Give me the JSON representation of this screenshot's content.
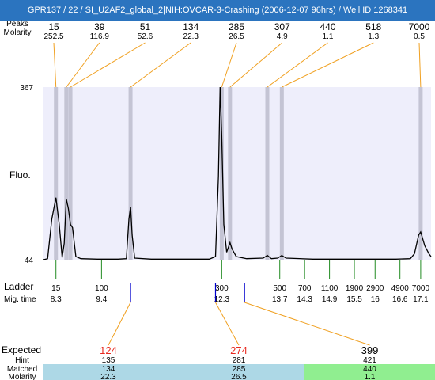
{
  "window_title": "GPR137 / 22 / SI_U2AF2_global_2|NIH:OVCAR-3-Crashing (2006-12-07 96hrs) / Well ID 1268341",
  "chart_data": {
    "type": "line",
    "top_labels": {
      "row1": "Peaks",
      "row2": "Molarity"
    },
    "peaks": [
      {
        "size": "15",
        "molarity": "252.5",
        "time": 8.3
      },
      {
        "size": "39",
        "molarity": "116.9",
        "time": 8.55
      },
      {
        "size": "51",
        "molarity": "52.6",
        "time": 8.65
      },
      {
        "size": "134",
        "molarity": "22.3",
        "time": 10.1
      },
      {
        "size": "285",
        "molarity": "26.5",
        "time": 12.3
      },
      {
        "size": "307",
        "molarity": "4.9",
        "time": 12.5
      },
      {
        "size": "440",
        "molarity": "1.1",
        "time": 13.4
      },
      {
        "size": "518",
        "molarity": "1.3",
        "time": 13.75
      },
      {
        "size": "7000",
        "molarity": "0.5",
        "time": 17.1
      }
    ],
    "ylim": [
      44,
      367
    ],
    "yticks": [
      "367",
      "44"
    ],
    "ylabel": "Fluo.",
    "xlim": [
      8.0,
      17.35
    ],
    "trace": [
      [
        8.0,
        44
      ],
      [
        8.1,
        46
      ],
      [
        8.2,
        120
      ],
      [
        8.3,
        160
      ],
      [
        8.38,
        110
      ],
      [
        8.45,
        48
      ],
      [
        8.5,
        75
      ],
      [
        8.55,
        158
      ],
      [
        8.6,
        140
      ],
      [
        8.65,
        110
      ],
      [
        8.7,
        104
      ],
      [
        8.78,
        50
      ],
      [
        8.9,
        46
      ],
      [
        9.3,
        45
      ],
      [
        9.8,
        45
      ],
      [
        10.0,
        46
      ],
      [
        10.06,
        120
      ],
      [
        10.1,
        143
      ],
      [
        10.14,
        90
      ],
      [
        10.2,
        47
      ],
      [
        10.6,
        45
      ],
      [
        11.5,
        45
      ],
      [
        12.0,
        45
      ],
      [
        12.15,
        50
      ],
      [
        12.22,
        200
      ],
      [
        12.26,
        367
      ],
      [
        12.3,
        280
      ],
      [
        12.35,
        110
      ],
      [
        12.42,
        58
      ],
      [
        12.5,
        76
      ],
      [
        12.55,
        64
      ],
      [
        12.65,
        50
      ],
      [
        12.9,
        46
      ],
      [
        13.3,
        47
      ],
      [
        13.4,
        52
      ],
      [
        13.5,
        46
      ],
      [
        13.65,
        47
      ],
      [
        13.75,
        52
      ],
      [
        13.85,
        47
      ],
      [
        14.5,
        45
      ],
      [
        15.5,
        45
      ],
      [
        16.5,
        45
      ],
      [
        16.85,
        46
      ],
      [
        16.95,
        55
      ],
      [
        17.05,
        90
      ],
      [
        17.1,
        96
      ],
      [
        17.2,
        70
      ],
      [
        17.3,
        55
      ],
      [
        17.35,
        50
      ]
    ],
    "ladder_label": "Ladder",
    "mig_label": "Mig. time",
    "ladder": [
      {
        "size": "15",
        "time": "8.3",
        "t": 8.3
      },
      {
        "size": "100",
        "time": "9.4",
        "t": 9.4
      },
      {
        "size": "300",
        "time": "12.3",
        "t": 12.3
      },
      {
        "size": "500",
        "time": "13.7",
        "t": 13.7
      },
      {
        "size": "700",
        "time": "14.3",
        "t": 14.3
      },
      {
        "size": "1100",
        "time": "14.9",
        "t": 14.9
      },
      {
        "size": "1900",
        "time": "15.5",
        "t": 15.5
      },
      {
        "size": "2900",
        "time": "16",
        "t": 16.0
      },
      {
        "size": "4900",
        "time": "16.6",
        "t": 16.6
      },
      {
        "size": "7000",
        "time": "17.1",
        "t": 17.1
      }
    ],
    "expected_markers": [
      10.1,
      12.15,
      12.85
    ],
    "table": {
      "row_labels": [
        "Expected",
        "Hint",
        "Matched",
        "Molarity"
      ],
      "columns": [
        {
          "expected": "124",
          "expected_color": "#e8281e",
          "hint": "135",
          "matched": "134",
          "molarity": "22.3",
          "color": "#add8e6",
          "marker_time": 10.1
        },
        {
          "expected": "274",
          "expected_color": "#e8281e",
          "hint": "281",
          "matched": "285",
          "molarity": "26.5",
          "color": "#add8e6",
          "marker_time": 12.15
        },
        {
          "expected": "399",
          "expected_color": "#000000",
          "hint": "421",
          "matched": "440",
          "molarity": "1.1",
          "color": "#90ee90",
          "marker_time": 12.85
        }
      ]
    },
    "colors": {
      "plot_bg": "#eeeefb",
      "band": "#c4c4d4",
      "trace": "#000000",
      "connector": "#f0a020",
      "ladder_tick": "#228b22",
      "marker": "#0000cc"
    }
  }
}
